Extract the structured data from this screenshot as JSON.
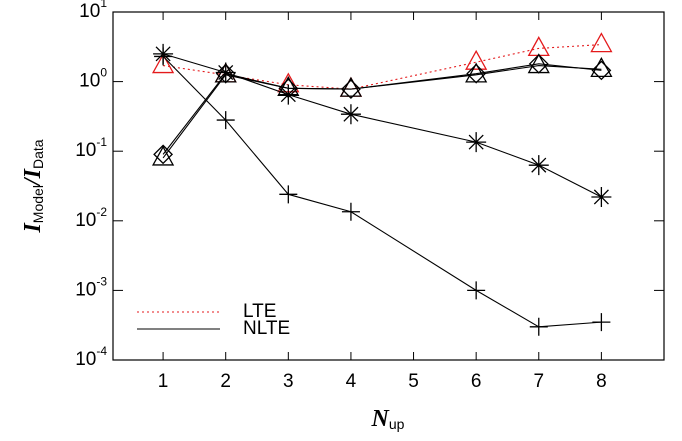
{
  "chart_data": {
    "type": "line",
    "xlabel": [
      "N",
      "up"
    ],
    "ylabel": [
      "I",
      "Model",
      "/",
      "I",
      "Data"
    ],
    "x": [
      1,
      2,
      3,
      4,
      6,
      7,
      8
    ],
    "xlim": [
      0.2,
      9
    ],
    "xticks": [
      1,
      2,
      3,
      4,
      5,
      6,
      7,
      8
    ],
    "log_y": true,
    "ylim": [
      0.0001,
      10
    ],
    "yticks": [
      {
        "value": 0.0001,
        "label": "10^-4"
      },
      {
        "value": 0.001,
        "label": "10^-3"
      },
      {
        "value": 0.01,
        "label": "10^-2"
      },
      {
        "value": 0.1,
        "label": "10^-1"
      },
      {
        "value": 1,
        "label": "10^0"
      },
      {
        "value": 10,
        "label": "10^1"
      }
    ],
    "series": [
      {
        "color": "#e41a1c",
        "line": "dotted",
        "marker": "triangle",
        "values": [
          1.7,
          1.25,
          0.9,
          0.78,
          1.9,
          3.0,
          3.4
        ]
      },
      {
        "color": "#000000",
        "line": "solid",
        "marker": "triangle",
        "values": [
          0.08,
          1.25,
          0.8,
          0.78,
          1.25,
          1.7,
          1.5
        ]
      },
      {
        "color": "#000000",
        "line": "solid",
        "marker": "diamond",
        "values": [
          0.09,
          1.3,
          0.8,
          0.78,
          1.3,
          1.8,
          1.45
        ]
      },
      {
        "color": "#000000",
        "line": "solid",
        "marker": "asterisk",
        "values": [
          2.5,
          1.35,
          0.65,
          0.34,
          0.135,
          0.063,
          0.022
        ]
      },
      {
        "color": "#000000",
        "line": "solid",
        "marker": "plus",
        "values": [
          2.3,
          0.28,
          0.024,
          0.0135,
          0.001,
          0.0003,
          0.00035
        ]
      }
    ],
    "legend": [
      {
        "label": "LTE",
        "color": "#e41a1c",
        "line": "dotted"
      },
      {
        "label": "NLTE",
        "color": "#000000",
        "line": "solid"
      }
    ],
    "legend_position": "lower left"
  }
}
